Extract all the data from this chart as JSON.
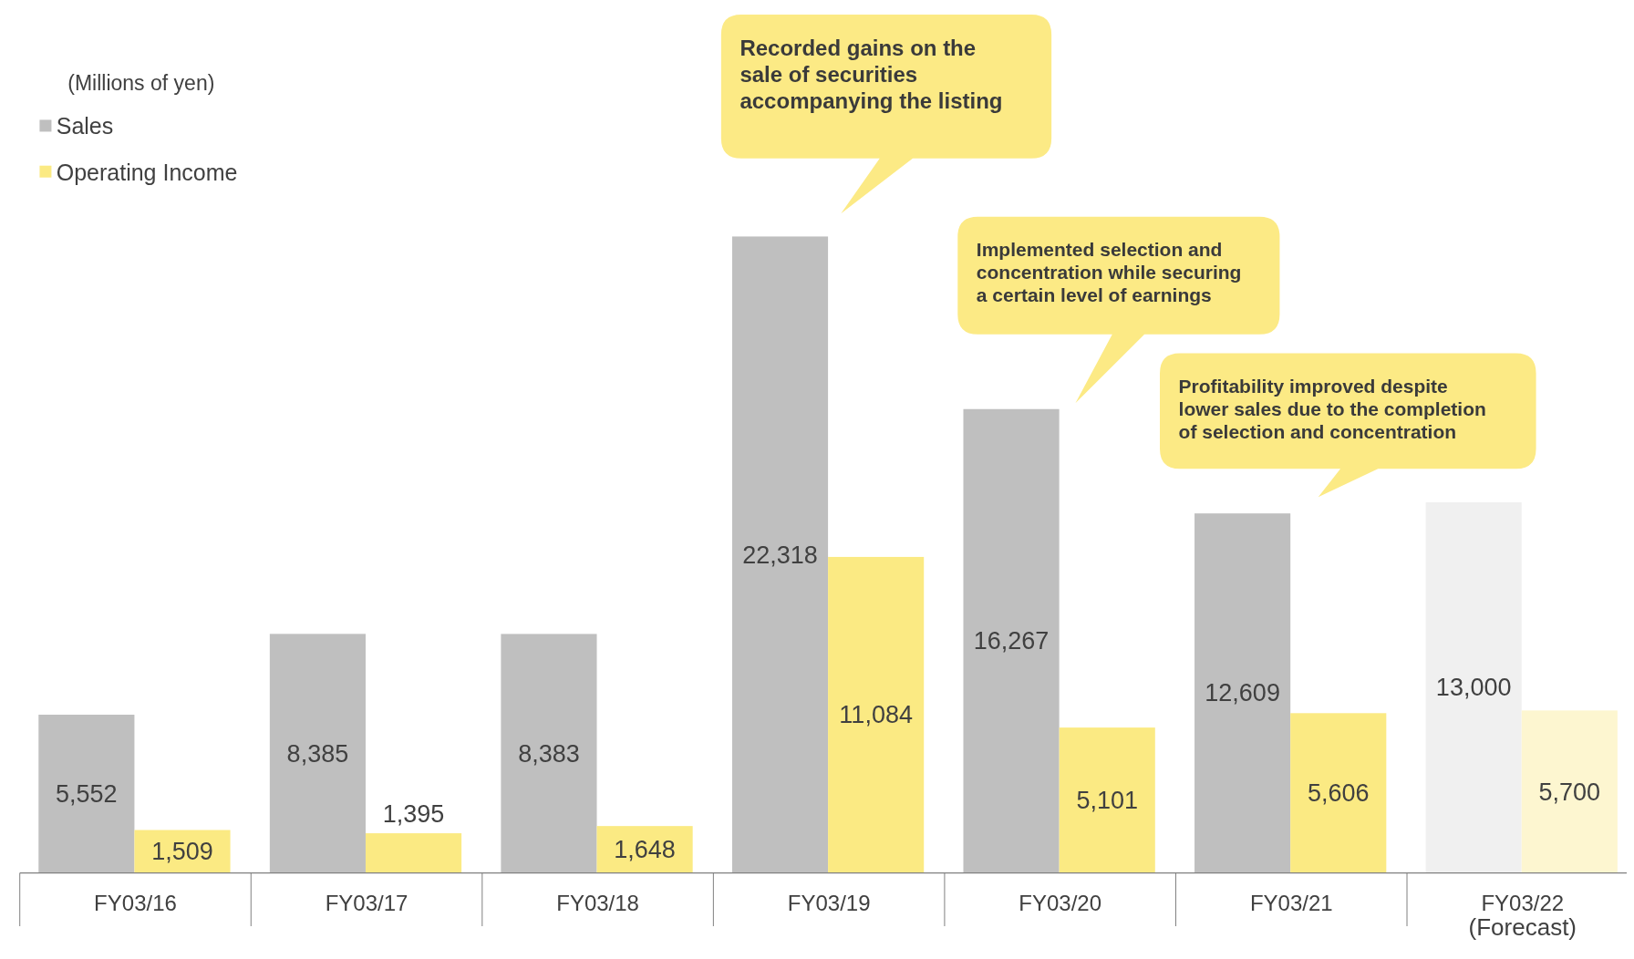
{
  "chart_data": {
    "type": "bar",
    "categories": [
      "FY03/16",
      "FY03/17",
      "FY03/18",
      "FY03/19",
      "FY03/20",
      "FY03/21",
      "FY03/22"
    ],
    "series": [
      {
        "name": "Sales",
        "color": "#bfbfbf",
        "colors": [
          "#bfbfbf",
          "#bfbfbf",
          "#bfbfbf",
          "#bfbfbf",
          "#bfbfbf",
          "#bfbfbf",
          "#f0f0f0"
        ],
        "values": [
          5552,
          8385,
          8383,
          22318,
          16267,
          12609,
          13000
        ],
        "value_labels": [
          "5,552",
          "8,385",
          "8,383",
          "22,318",
          "16,267",
          "12,609",
          "13,000"
        ]
      },
      {
        "name": "Operating Income",
        "color": "#fbea83",
        "colors": [
          "#fbea83",
          "#fbea83",
          "#fbea83",
          "#fbea83",
          "#fbea83",
          "#fbea83",
          "#fdf6d0"
        ],
        "values": [
          1509,
          1395,
          1648,
          11084,
          5101,
          5606,
          5700
        ],
        "value_labels": [
          "1,509",
          "1,395",
          "1,648",
          "11,084",
          "5,101",
          "5,606",
          "5,700"
        ]
      }
    ],
    "legend": "top left",
    "annotations": [
      "(Millions of yen)",
      "Recorded gains on the\nsale of securities\naccompanying the listing",
      "Implemented selection and\nconcentration while securing\na certain level of earnings",
      "Profitability improved despite\nlower sales due to the completion\nof selection and concentration",
      "(Forecast)"
    ]
  }
}
